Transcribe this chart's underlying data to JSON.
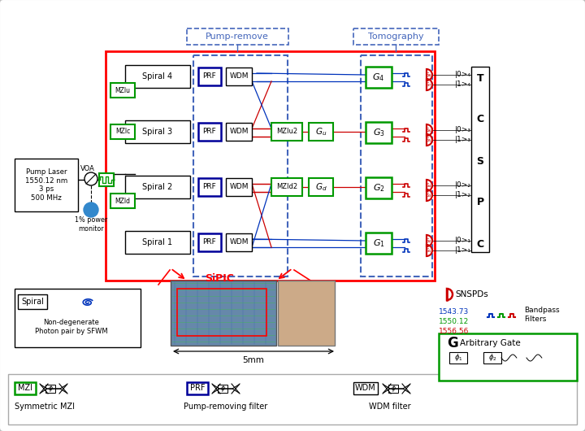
{
  "green": "#009900",
  "red": "#cc0000",
  "blue": "#0033bb",
  "dark_blue": "#000099",
  "dashed_blue": "#4466bb",
  "wavelengths": [
    "1543.73",
    "1550.12",
    "1556.56"
  ],
  "wl_colors": [
    "#0033bb",
    "#009900",
    "#cc0000"
  ],
  "spiral_labels": [
    "Spiral 4",
    "Spiral 3",
    "Spiral 2",
    "Spiral 1"
  ],
  "g_labels": [
    "G₄",
    "G₃",
    "G₂",
    "G₁"
  ],
  "s_labels": [
    "S₈",
    "S₇",
    "S₆",
    "S₅",
    "S₄",
    "S₃",
    "S₂",
    "S₁"
  ],
  "qubit_labels": [
    "|0>₄",
    "|1>₄",
    "|0>₃",
    "|1>₃",
    "|0>₂",
    "|1>₂",
    "|0>₁",
    "|1>₁"
  ],
  "tcsp": [
    "T",
    "C",
    "S",
    "P",
    "C"
  ]
}
